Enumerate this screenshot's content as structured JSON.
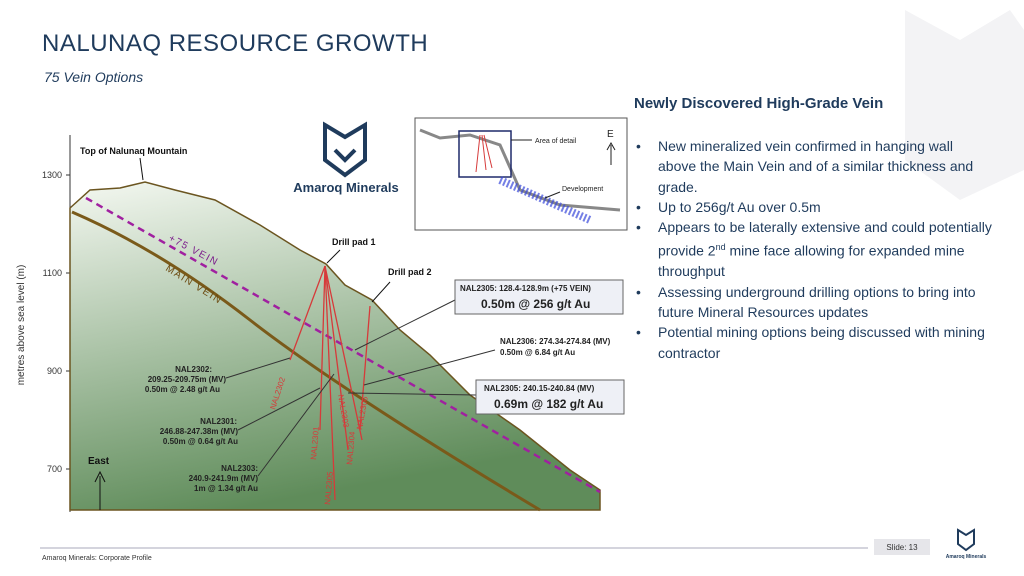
{
  "header": {
    "title": "NALUNAQ RESOURCE GROWTH",
    "subtitle": "75 Vein Options"
  },
  "section": {
    "heading": "Newly Discovered High-Grade Vein",
    "bullets": [
      [
        "New mineralized vein confirmed in hanging wall above the Main Vein and of a similar thickness and grade."
      ],
      [
        "Up to 256g/t Au over 0.5m"
      ],
      [
        "Appears to be laterally extensive and could potentially provide 2",
        "nd",
        " mine face allowing for expanded mine throughput"
      ],
      [
        "Assessing underground drilling options to bring into future Mineral Resources updates"
      ],
      [
        "Potential mining options being discussed with mining contractor"
      ]
    ]
  },
  "logo": {
    "name": "Amaroq Minerals"
  },
  "figure": {
    "y_axis_label": "metres above sea level (m)",
    "y_ticks": [
      1300,
      1100,
      900,
      700
    ],
    "mountain_label": "Top of Nalunaq Mountain",
    "vein_75": "+75 VEIN",
    "main_vein": "MAIN VEIN",
    "pad1": "Drill pad 1",
    "pad2": "Drill pad 2",
    "east": "East",
    "holes": [
      "NAL2302",
      "NAL2301",
      "NAL2305",
      "NAL2303",
      "NAL2304",
      "NAL2306"
    ],
    "callouts": {
      "nal2302": [
        "NAL2302:",
        "209.25-209.75m (MV)",
        "0.50m @ 2.48 g/t Au"
      ],
      "nal2301": [
        "NAL2301:",
        "246.88-247.38m (MV)",
        "0.50m @ 0.64 g/t Au"
      ],
      "nal2303": [
        "NAL2303:",
        "240.9-241.9m (MV)",
        "1m @ 1.34 g/t Au"
      ],
      "nal2306": [
        "NAL2306: 274.34-274.84 (MV)",
        "0.50m @ 6.84 g/t Au"
      ],
      "nal2305_75": [
        "NAL2305: 128.4-128.9m (+75 VEIN)",
        "0.50m @ 256 g/t Au"
      ],
      "nal2305_mv": [
        "NAL2305: 240.15-240.84 (MV)",
        "0.69m @ 182 g/t Au"
      ]
    },
    "inset": {
      "area": "Area of detail",
      "development": "Development",
      "north": "E"
    }
  },
  "footer": {
    "left": "Amaroq Minerals: Corporate Profile",
    "slide": "Slide: 13",
    "logo": "Amaroq Minerals"
  }
}
